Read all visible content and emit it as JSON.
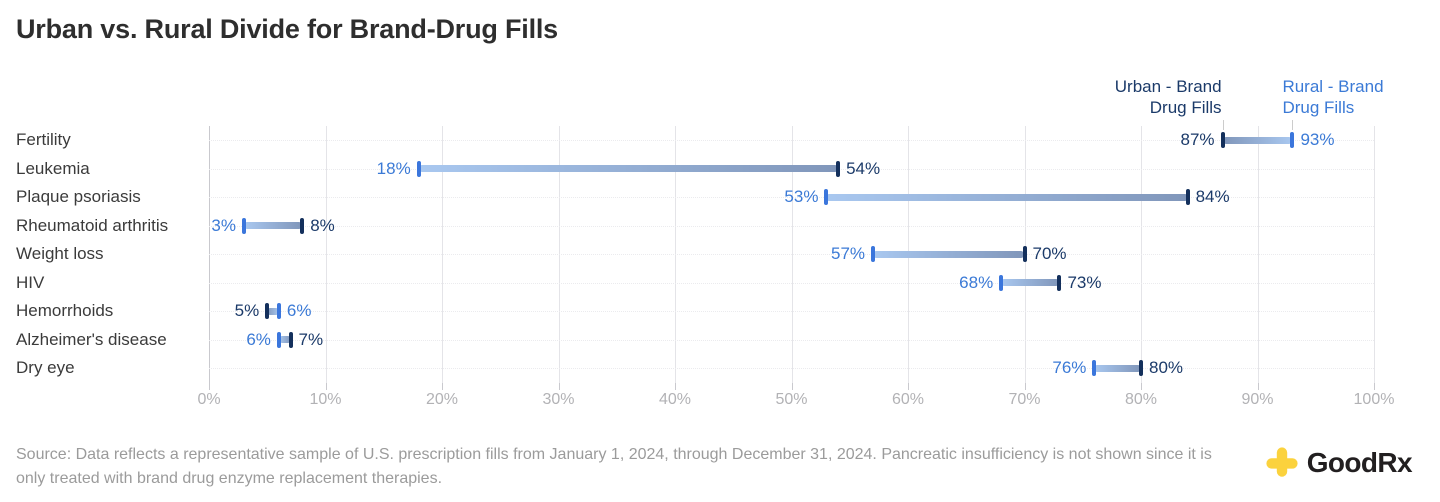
{
  "title": "Urban vs. Rural Divide for Brand-Drug Fills",
  "legend": {
    "urban_label": "Urban - Brand Drug Fills",
    "rural_label": "Rural - Brand Drug Fills"
  },
  "colors": {
    "title_text": "#2E2E2E",
    "category_text": "#3B3B3B",
    "axis_text": "#B2B2B5",
    "gridline": "#E4E4E8",
    "zero_gridline": "#C9C9CE",
    "row_line": "#EBEBEE",
    "urban_text": "#1B3A69",
    "rural_text": "#3B7AD6",
    "urban_cap": "#14305C",
    "rural_cap": "#3B76DC",
    "bar_gradient_rural_end": "#A9C8F0",
    "bar_gradient_urban_end": "#8096BA",
    "source_text": "#9B9B9B",
    "brand_yellow": "#FBD23D",
    "brand_text": "#221F20"
  },
  "chart_data": {
    "type": "dumbbell",
    "title": "Urban vs. Rural Divide for Brand-Drug Fills",
    "categories": [
      "Fertility",
      "Leukemia",
      "Plaque psoriasis",
      "Rheumatoid arthritis",
      "Weight loss",
      "HIV",
      "Hemorrhoids",
      "Alzheimer's disease",
      "Dry eye"
    ],
    "series": [
      {
        "name": "Urban - Brand Drug Fills",
        "values": [
          87,
          54,
          84,
          8,
          70,
          73,
          5,
          7,
          80
        ]
      },
      {
        "name": "Rural - Brand Drug Fills",
        "values": [
          93,
          18,
          53,
          3,
          57,
          68,
          6,
          6,
          76
        ]
      }
    ],
    "value_suffix": "%",
    "xlabel": "",
    "ylabel": "",
    "xlim": [
      0,
      100
    ],
    "x_tick_values": [
      0,
      10,
      20,
      30,
      40,
      50,
      60,
      70,
      80,
      90,
      100
    ],
    "x_ticks": [
      "0%",
      "10%",
      "20%",
      "30%",
      "40%",
      "50%",
      "60%",
      "70%",
      "80%",
      "90%",
      "100%"
    ],
    "grid": "vertical solid gridlines, faint dotted horizontal row guides",
    "legend_position": "top-right, anchored above first row caps"
  },
  "footer": {
    "source": "Source: Data reflects a representative sample of U.S. prescription fills from January 1, 2024, through December 31, 2024. Pancreatic insufficiency is not shown since it is only treated with brand drug enzyme replacement therapies.",
    "brand": "GoodRx"
  }
}
